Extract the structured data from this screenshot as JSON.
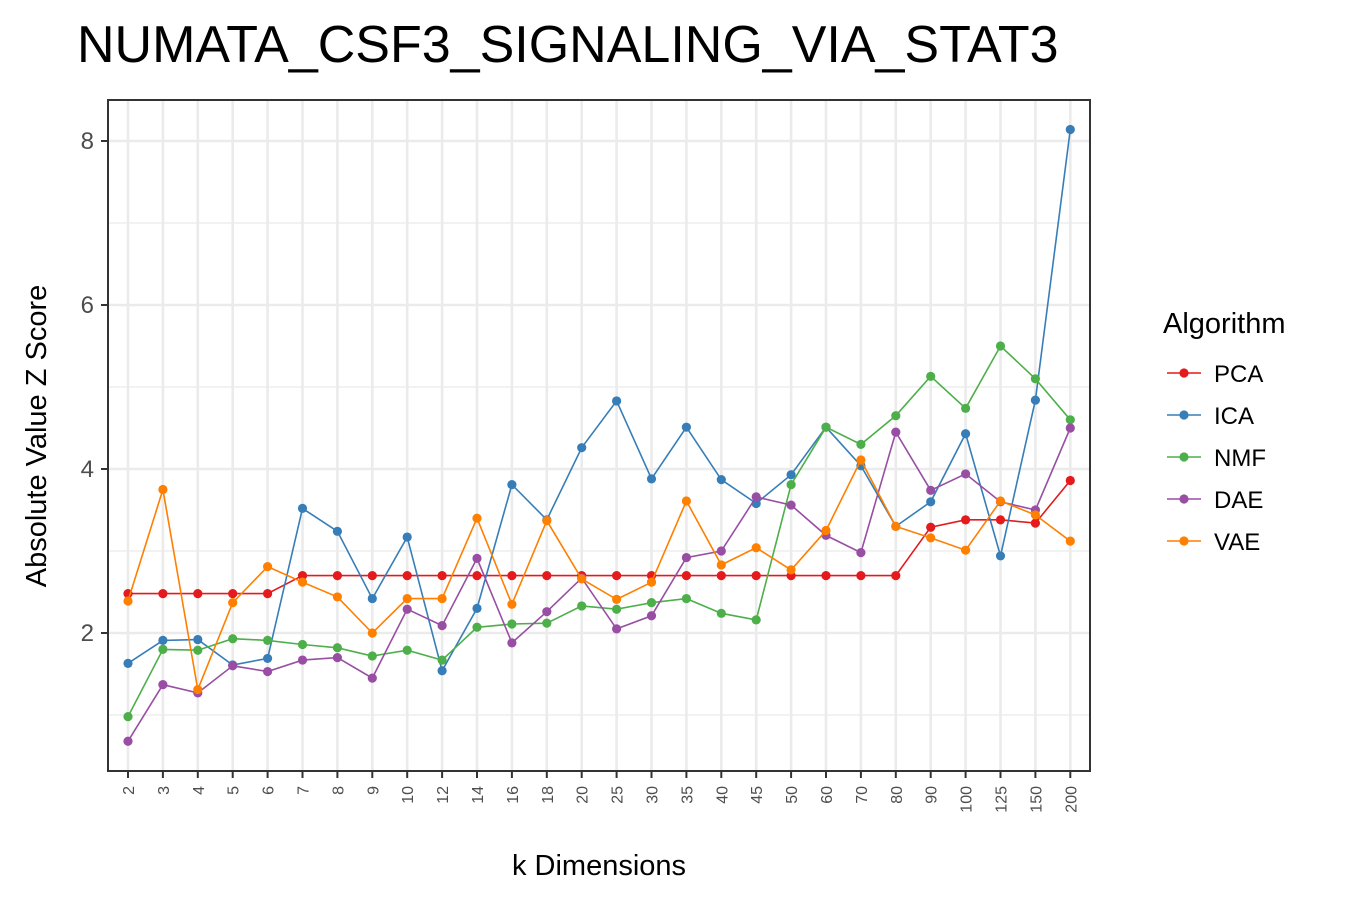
{
  "chart_data": {
    "type": "line",
    "title": "NUMATA_CSF3_SIGNALING_VIA_STAT3",
    "xlabel": "k Dimensions",
    "ylabel": "Absolute Value Z Score",
    "categories": [
      "2",
      "3",
      "4",
      "5",
      "6",
      "7",
      "8",
      "9",
      "10",
      "12",
      "14",
      "16",
      "18",
      "20",
      "25",
      "30",
      "35",
      "40",
      "45",
      "50",
      "60",
      "70",
      "80",
      "90",
      "100",
      "125",
      "150",
      "200"
    ],
    "ylim": [
      0.35,
      8.5
    ],
    "yticks": [
      2,
      4,
      6,
      8
    ],
    "grid": true,
    "legend": {
      "title": "Algorithm",
      "placement": "right"
    },
    "series": [
      {
        "name": "PCA",
        "color": "#e41a1c",
        "values": [
          2.48,
          2.48,
          2.48,
          2.48,
          2.48,
          2.7,
          2.7,
          2.7,
          2.7,
          2.7,
          2.7,
          2.7,
          2.7,
          2.7,
          2.7,
          2.7,
          2.7,
          2.7,
          2.7,
          2.7,
          2.7,
          2.7,
          2.7,
          3.29,
          3.38,
          3.38,
          3.34,
          3.86
        ]
      },
      {
        "name": "ICA",
        "color": "#377eb8",
        "values": [
          1.63,
          1.91,
          1.92,
          1.61,
          1.69,
          3.52,
          3.24,
          2.42,
          3.17,
          1.54,
          2.3,
          3.81,
          3.38,
          4.26,
          4.83,
          3.88,
          4.51,
          3.87,
          3.58,
          3.93,
          4.51,
          4.04,
          3.3,
          3.6,
          4.43,
          2.94,
          4.84,
          8.14
        ]
      },
      {
        "name": "NMF",
        "color": "#4daf4a",
        "values": [
          0.98,
          1.8,
          1.79,
          1.93,
          1.91,
          1.86,
          1.82,
          1.72,
          1.79,
          1.67,
          2.07,
          2.11,
          2.12,
          2.33,
          2.29,
          2.37,
          2.42,
          2.24,
          2.16,
          3.81,
          4.51,
          4.3,
          4.65,
          5.13,
          4.74,
          5.5,
          5.1,
          4.6
        ]
      },
      {
        "name": "DAE",
        "color": "#984ea3",
        "values": [
          0.68,
          1.37,
          1.27,
          1.6,
          1.53,
          1.67,
          1.7,
          1.45,
          2.29,
          2.09,
          2.91,
          1.88,
          2.26,
          2.67,
          2.05,
          2.21,
          2.92,
          3.0,
          3.66,
          3.56,
          3.19,
          2.98,
          4.45,
          3.74,
          3.94,
          3.6,
          3.5,
          4.5
        ]
      },
      {
        "name": "VAE",
        "color": "#ff7f00",
        "values": [
          2.39,
          3.75,
          1.31,
          2.37,
          2.81,
          2.62,
          2.44,
          2.0,
          2.42,
          2.42,
          3.4,
          2.35,
          3.37,
          2.66,
          2.41,
          2.62,
          3.61,
          2.83,
          3.04,
          2.77,
          3.25,
          4.11,
          3.3,
          3.16,
          3.01,
          3.61,
          3.44,
          3.12
        ]
      }
    ]
  }
}
